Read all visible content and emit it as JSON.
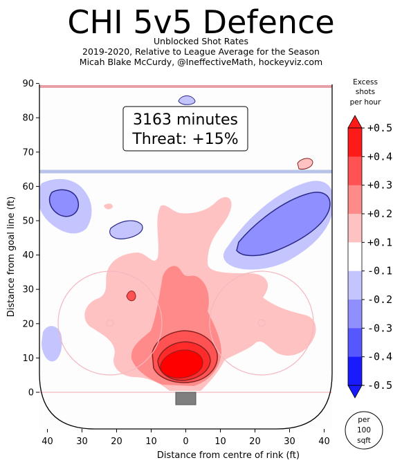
{
  "header": {
    "title": "CHI 5v5 Defence",
    "subtitle_lines": [
      "Unblocked Shot Rates",
      "2019-2020, Relative to League Average for the Season",
      "Micah Blake McCurdy, @IneffectiveMath, hockeyviz.com"
    ]
  },
  "chart_data": {
    "type": "heatmap",
    "title": "CHI 5v5 Defence",
    "xlabel": "Distance from centre of rink (ft)",
    "ylabel": "Distance from goal line (ft)",
    "xlim": [
      -42,
      42
    ],
    "ylim": [
      -11,
      90
    ],
    "x_tick_labels": [
      "40",
      "30",
      "20",
      "10",
      "0",
      "10",
      "20",
      "30",
      "40"
    ],
    "y_ticks": [
      0,
      10,
      20,
      30,
      40,
      50,
      60,
      70,
      80,
      90
    ],
    "annotation": {
      "minutes_text": "3163 minutes",
      "threat_text": "Threat: +15%"
    },
    "colorbar": {
      "title_lines": [
        "Excess",
        "shots",
        "per hour"
      ],
      "tick_labels": [
        "+0.5",
        "+0.4",
        "+0.3",
        "+0.2",
        "+0.1",
        "-0.1",
        "-0.2",
        "-0.3",
        "-0.4",
        "-0.5"
      ],
      "unit_lines": [
        "per",
        "100",
        "sqft"
      ],
      "colors": [
        "#ff1a1a",
        "#ff5252",
        "#ff8a8a",
        "#ffc2c2",
        "#ffffff",
        "#c4c4ff",
        "#8f8fff",
        "#5757ff",
        "#1a1aff"
      ]
    },
    "regions": [
      {
        "sign": "+",
        "level": 0.1,
        "x": [
          -20,
          18
        ],
        "y": [
          0,
          52
        ]
      },
      {
        "sign": "+",
        "level": 0.1,
        "x": [
          14,
          42
        ],
        "y": [
          5,
          30
        ]
      },
      {
        "sign": "+",
        "level": 0.2,
        "x": [
          -8,
          8
        ],
        "y": [
          2,
          30
        ]
      },
      {
        "sign": "+",
        "level": 0.3,
        "x": [
          -5,
          6
        ],
        "y": [
          3,
          18
        ]
      },
      {
        "sign": "+",
        "level": 0.4,
        "x": [
          -3,
          5
        ],
        "y": [
          3,
          12
        ]
      },
      {
        "sign": "+",
        "level": 0.5,
        "x": [
          -2,
          4
        ],
        "y": [
          4,
          9
        ]
      },
      {
        "sign": "-",
        "level": 0.1,
        "x": [
          -42,
          -26
        ],
        "y": [
          45,
          63
        ]
      },
      {
        "sign": "-",
        "level": 0.2,
        "x": [
          -38,
          -32
        ],
        "y": [
          50,
          57
        ]
      },
      {
        "sign": "-",
        "level": 0.1,
        "x": [
          12,
          42
        ],
        "y": [
          35,
          60
        ]
      },
      {
        "sign": "-",
        "level": 0.2,
        "x": [
          20,
          38
        ],
        "y": [
          40,
          55
        ]
      },
      {
        "sign": "-",
        "level": 0.1,
        "x": [
          -21,
          -12
        ],
        "y": [
          44,
          50
        ]
      },
      {
        "sign": "-",
        "level": 0.1,
        "x": [
          -40,
          -35
        ],
        "y": [
          8,
          20
        ]
      },
      {
        "sign": "-",
        "level": 0.1,
        "x": [
          -2,
          2
        ],
        "y": [
          83,
          86
        ]
      },
      {
        "sign": "+",
        "level": 0.1,
        "x": [
          33,
          37
        ],
        "y": [
          65,
          68
        ]
      }
    ]
  }
}
